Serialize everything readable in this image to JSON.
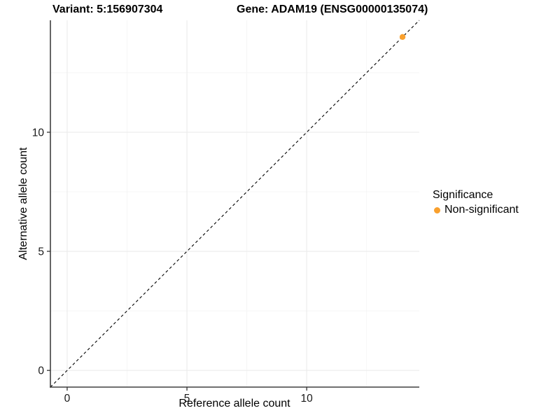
{
  "chart_data": {
    "type": "scatter",
    "title_left": "Variant: 5:156907304",
    "title_right": "Gene: ADAM19 (ENSG00000135074)",
    "xlabel": "Reference allele count",
    "ylabel": "Alternative allele count",
    "xlim": [
      -0.7,
      14.7
    ],
    "ylim": [
      -0.7,
      14.7
    ],
    "x_major_ticks": [
      0,
      5,
      10
    ],
    "y_major_ticks": [
      0,
      5,
      10
    ],
    "x_minor_gridlines": [
      2.5,
      7.5,
      12.5
    ],
    "y_minor_gridlines": [
      2.5,
      7.5,
      12.5
    ],
    "grid": true,
    "legend_position": "right",
    "series": [
      {
        "name": "Non-significant",
        "color": "#F9A02D",
        "marker": "circle",
        "points": [
          [
            14,
            14
          ]
        ]
      }
    ],
    "reference_line": {
      "slope": 1,
      "intercept": 0,
      "linetype": "dashed",
      "color": "#000000"
    }
  },
  "legend": {
    "title": "Significance",
    "items": [
      {
        "label": "Non-significant",
        "color": "#F9A02D"
      }
    ]
  },
  "colors": {
    "grid_major": "#EBEBEB",
    "grid_minor": "#F5F5F5",
    "axis_line": "#404040",
    "tick_mark": "#333333",
    "axis_text": "#1A1A1A"
  }
}
